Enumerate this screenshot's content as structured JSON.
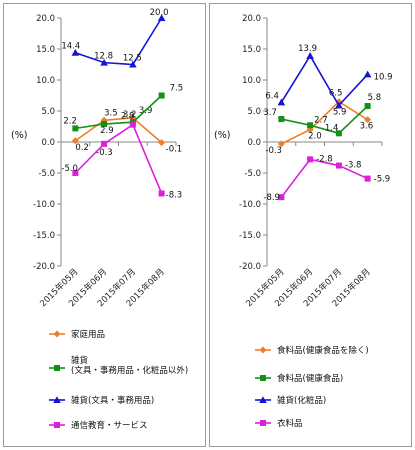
{
  "chart_data": [
    {
      "type": "line",
      "ylabel": "(%)",
      "ylim": [
        -20,
        20
      ],
      "yticks": [
        "20.0",
        "15.0",
        "10.0",
        "5.0",
        "0.0",
        "-5.0",
        "-10.0",
        "-15.0",
        "-20.0"
      ],
      "categories": [
        "2015年05月",
        "2015年06月",
        "2015年07月",
        "2015年08月"
      ],
      "series": [
        {
          "name": "家庭用品",
          "color": "#f07f28",
          "marker": "diamond",
          "values": [
            0.2,
            3.5,
            3.9,
            -0.1
          ],
          "labels": [
            "0.2",
            "3.5",
            "3.9",
            "-0.1"
          ]
        },
        {
          "name": "雑貨\n(文具・事務用品・化粧品以外)",
          "color": "#139015",
          "marker": "square",
          "values": [
            2.2,
            2.9,
            3.2,
            7.5
          ],
          "labels": [
            "2.2",
            "2.9",
            "3.2",
            "7.5"
          ]
        },
        {
          "name": "雑貨(文具・事務用品)",
          "color": "#1515d6",
          "marker": "triangle",
          "values": [
            14.4,
            12.8,
            12.5,
            20.0
          ],
          "labels": [
            "14.4",
            "12.8",
            "12.5",
            "20.0"
          ]
        },
        {
          "name": "通信教育・サービス",
          "color": "#db1fdb",
          "marker": "square",
          "values": [
            -5.0,
            -0.3,
            2.8,
            -8.3
          ],
          "labels": [
            "-5.0",
            "-0.3",
            "2.8",
            "-8.3"
          ]
        }
      ]
    },
    {
      "type": "line",
      "ylabel": "(%)",
      "ylim": [
        -20,
        20
      ],
      "yticks": [
        "20.0",
        "15.0",
        "10.0",
        "5.0",
        "0.0",
        "-5.0",
        "-10.0",
        "-15.0",
        "-20.0"
      ],
      "categories": [
        "2015年05月",
        "2015年06月",
        "2015年07月",
        "2015年08月"
      ],
      "series": [
        {
          "name": "食料品(健康食品を除く)",
          "color": "#f07f28",
          "marker": "diamond",
          "values": [
            -0.3,
            2.0,
            6.5,
            3.6
          ],
          "labels": [
            "-0.3",
            "2.0",
            "6.5",
            "3.6"
          ]
        },
        {
          "name": "食料品(健康食品)",
          "color": "#139015",
          "marker": "square",
          "values": [
            3.7,
            2.7,
            1.4,
            5.8
          ],
          "labels": [
            "3.7",
            "2.7",
            "1.4",
            "5.8"
          ]
        },
        {
          "name": "雑貨(化粧品)",
          "color": "#1515d6",
          "marker": "triangle",
          "values": [
            6.4,
            13.9,
            5.9,
            10.9
          ],
          "labels": [
            "6.4",
            "13.9",
            "5.9",
            "10.9"
          ]
        },
        {
          "name": "衣料品",
          "color": "#db1fdb",
          "marker": "square",
          "values": [
            -8.9,
            -2.8,
            -3.8,
            -5.9
          ],
          "labels": [
            "-8.9",
            "-2.8",
            "-3.8",
            "-5.9"
          ]
        }
      ]
    }
  ]
}
